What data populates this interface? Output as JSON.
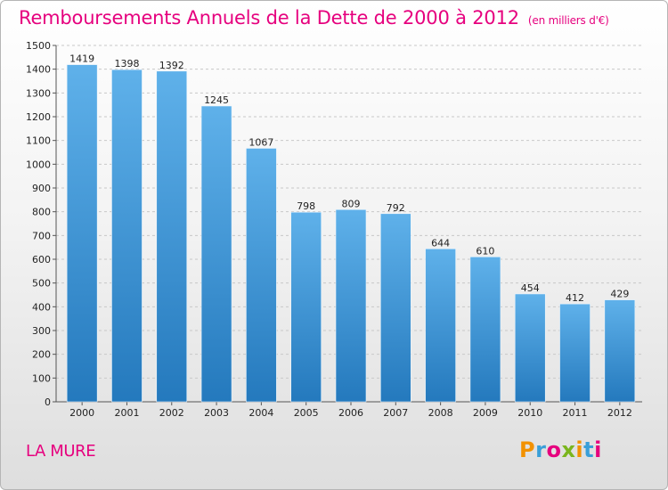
{
  "title": "Remboursements Annuels de la Dette de 2000 à 2012",
  "subtitle": "(en milliers d'€)",
  "city": "LA MURE",
  "brand": {
    "text": "Proxiti",
    "letter_colors": [
      "#f29100",
      "#3a9fd8",
      "#e6007e",
      "#7ab51d",
      "#f29100",
      "#3a9fd8",
      "#e6007e"
    ]
  },
  "colors": {
    "title": "#e6007e",
    "bar_light": "#5fb1ea",
    "bar_dark": "#2479bd",
    "grid": "#c8c8c8"
  },
  "chart_data": {
    "type": "bar",
    "categories": [
      "2000",
      "2001",
      "2002",
      "2003",
      "2004",
      "2005",
      "2006",
      "2007",
      "2008",
      "2009",
      "2010",
      "2011",
      "2012"
    ],
    "values": [
      1419,
      1398,
      1392,
      1245,
      1067,
      798,
      809,
      792,
      644,
      610,
      454,
      412,
      429
    ],
    "y_ticks": [
      0,
      100,
      200,
      300,
      400,
      500,
      600,
      700,
      800,
      900,
      1000,
      1100,
      1200,
      1300,
      1400,
      1500
    ],
    "ylim": [
      0,
      1500
    ],
    "grid": true
  }
}
